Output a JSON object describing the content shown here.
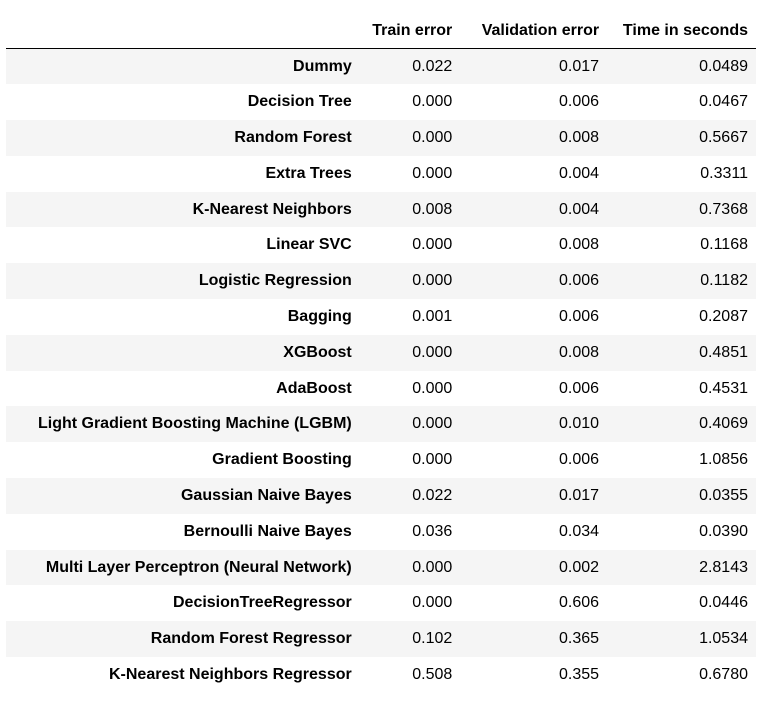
{
  "table": {
    "columns": [
      "",
      "Train error",
      "Validation error",
      "Time in seconds"
    ],
    "rows": [
      {
        "model": "Dummy",
        "train": "0.022",
        "validation": "0.017",
        "time": "0.0489"
      },
      {
        "model": "Decision Tree",
        "train": "0.000",
        "validation": "0.006",
        "time": "0.0467"
      },
      {
        "model": "Random Forest",
        "train": "0.000",
        "validation": "0.008",
        "time": "0.5667"
      },
      {
        "model": "Extra Trees",
        "train": "0.000",
        "validation": "0.004",
        "time": "0.3311"
      },
      {
        "model": "K-Nearest Neighbors",
        "train": "0.008",
        "validation": "0.004",
        "time": "0.7368"
      },
      {
        "model": "Linear SVC",
        "train": "0.000",
        "validation": "0.008",
        "time": "0.1168"
      },
      {
        "model": "Logistic Regression",
        "train": "0.000",
        "validation": "0.006",
        "time": "0.1182"
      },
      {
        "model": "Bagging",
        "train": "0.001",
        "validation": "0.006",
        "time": "0.2087"
      },
      {
        "model": "XGBoost",
        "train": "0.000",
        "validation": "0.008",
        "time": "0.4851"
      },
      {
        "model": "AdaBoost",
        "train": "0.000",
        "validation": "0.006",
        "time": "0.4531"
      },
      {
        "model": "Light Gradient Boosting Machine (LGBM)",
        "train": "0.000",
        "validation": "0.010",
        "time": "0.4069"
      },
      {
        "model": "Gradient Boosting",
        "train": "0.000",
        "validation": "0.006",
        "time": "1.0856"
      },
      {
        "model": "Gaussian Naive Bayes",
        "train": "0.022",
        "validation": "0.017",
        "time": "0.0355"
      },
      {
        "model": "Bernoulli Naive Bayes",
        "train": "0.036",
        "validation": "0.034",
        "time": "0.0390"
      },
      {
        "model": "Multi Layer Perceptron (Neural Network)",
        "train": "0.000",
        "validation": "0.002",
        "time": "2.8143"
      },
      {
        "model": "DecisionTreeRegressor",
        "train": "0.000",
        "validation": "0.606",
        "time": "0.0446"
      },
      {
        "model": "Random Forest Regressor",
        "train": "0.102",
        "validation": "0.365",
        "time": "1.0534"
      },
      {
        "model": "K-Nearest Neighbors Regressor",
        "train": "0.508",
        "validation": "0.355",
        "time": "0.6780"
      }
    ]
  },
  "colors": {
    "stripe": "#f5f5f5",
    "background": "#ffffff",
    "text": "#000000"
  }
}
